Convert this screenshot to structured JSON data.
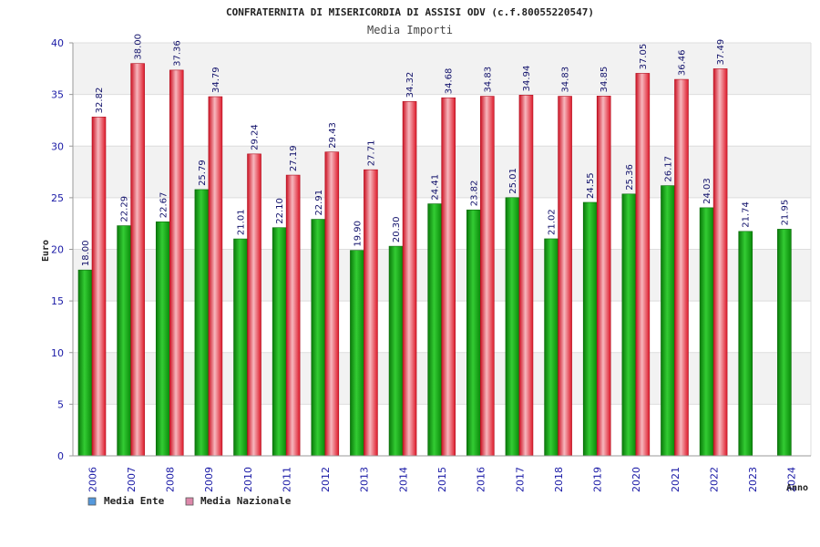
{
  "chart_data": {
    "type": "bar",
    "title": "CONFRATERNITA DI MISERICORDIA DI ASSISI ODV (c.f.80055220547)",
    "subtitle": "Media Importi",
    "xlabel": "Anno",
    "ylabel": "Euro",
    "ylim": [
      0,
      40
    ],
    "yticks": [
      0,
      5,
      10,
      15,
      20,
      25,
      30,
      35,
      40
    ],
    "grid": true,
    "legend_position": "bottom-left",
    "categories": [
      "2006",
      "2007",
      "2008",
      "2009",
      "2010",
      "2011",
      "2012",
      "2013",
      "2014",
      "2015",
      "2016",
      "2017",
      "2018",
      "2019",
      "2020",
      "2021",
      "2022",
      "2023",
      "2024"
    ],
    "series": [
      {
        "name": "Media Ente",
        "color": "#11aa11",
        "legend_color": "#5599dd",
        "values": [
          18.0,
          22.29,
          22.67,
          25.79,
          21.01,
          22.1,
          22.91,
          19.9,
          20.3,
          24.41,
          23.82,
          25.01,
          21.02,
          24.55,
          25.36,
          26.17,
          24.03,
          21.74,
          21.95
        ],
        "labels": [
          "18.00",
          "22.29",
          "22.67",
          "25.79",
          "21.01",
          "22.10",
          "22.91",
          "19.90",
          "20.30",
          "24.41",
          "23.82",
          "25.01",
          "21.02",
          "24.55",
          "25.36",
          "26.17",
          "24.03",
          "21.74",
          "21.95"
        ]
      },
      {
        "name": "Media Nazionale",
        "color": "#dd1a2a",
        "legend_color": "#dd88aa",
        "values": [
          32.82,
          38.0,
          37.36,
          34.79,
          29.24,
          27.19,
          29.43,
          27.71,
          34.32,
          34.68,
          34.83,
          34.94,
          34.83,
          34.85,
          37.05,
          36.46,
          37.49,
          null,
          null
        ],
        "labels": [
          "32.82",
          "38.00",
          "37.36",
          "34.79",
          "29.24",
          "27.19",
          "29.43",
          "27.71",
          "34.32",
          "34.68",
          "34.83",
          "34.94",
          "34.83",
          "34.85",
          "37.05",
          "36.46",
          "37.49",
          "",
          ""
        ]
      }
    ]
  }
}
